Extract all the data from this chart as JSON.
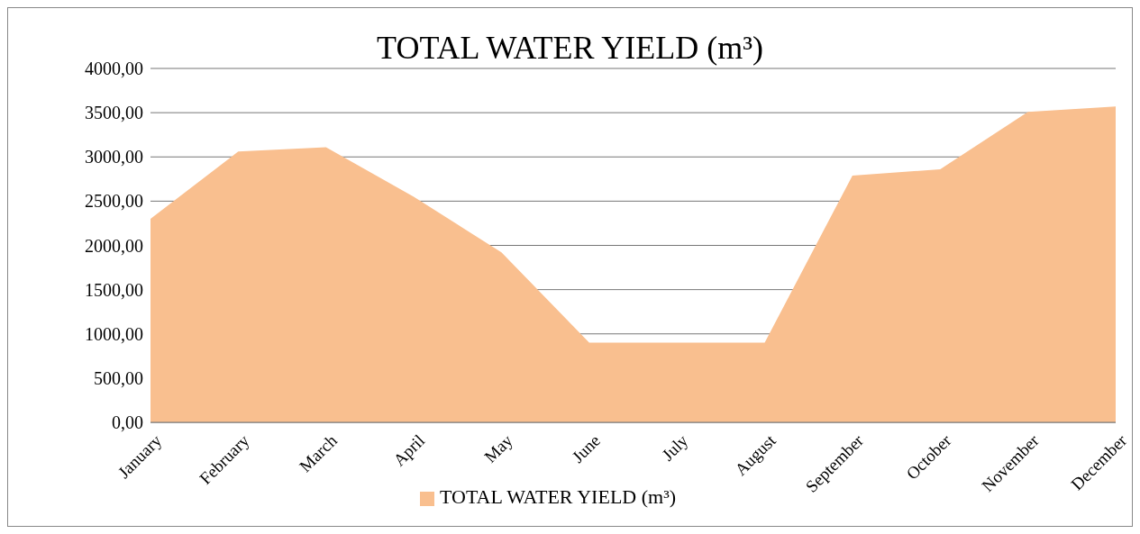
{
  "chart_data": {
    "type": "area",
    "title": "TOTAL WATER YIELD (m³)",
    "categories": [
      "January",
      "February",
      "March",
      "April",
      "May",
      "June",
      "July",
      "August",
      "September",
      "October",
      "November",
      "December"
    ],
    "series": [
      {
        "name": "TOTAL WATER YIELD (m³)",
        "color": "#f9bf8f",
        "values": [
          2300,
          3060,
          3110,
          2550,
          1920,
          900,
          900,
          900,
          2790,
          2860,
          3510,
          3570
        ]
      }
    ],
    "ylim": [
      0,
      4000
    ],
    "yticks": [
      {
        "value": 0,
        "label": "0,00"
      },
      {
        "value": 500,
        "label": "500,00"
      },
      {
        "value": 1000,
        "label": "1000,00"
      },
      {
        "value": 1500,
        "label": "1500,00"
      },
      {
        "value": 2000,
        "label": "2000,00"
      },
      {
        "value": 2500,
        "label": "2500,00"
      },
      {
        "value": 3000,
        "label": "3000,00"
      },
      {
        "value": 3500,
        "label": "3500,00"
      },
      {
        "value": 4000,
        "label": "4000,00"
      }
    ],
    "grid": "y",
    "legend": "bottom"
  }
}
